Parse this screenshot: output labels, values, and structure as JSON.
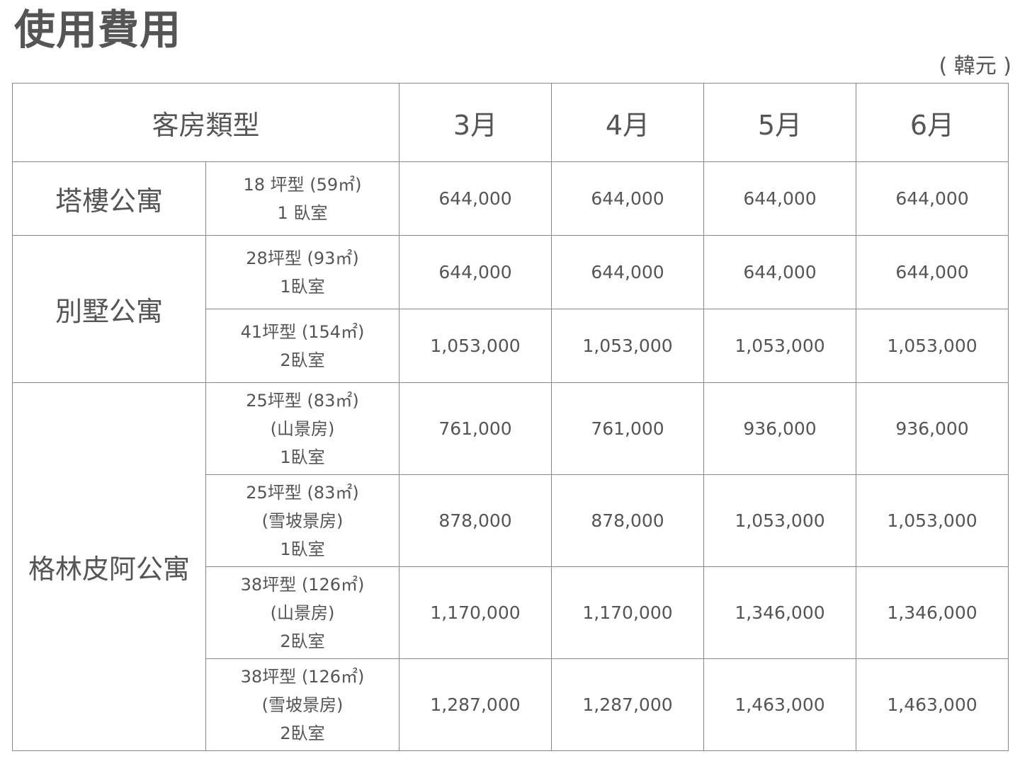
{
  "title": "使用費用",
  "unit_note": "( 韓元 )",
  "table": {
    "header": {
      "room_type": "客房類型",
      "months": [
        "3月",
        "4月",
        "5月",
        "6月"
      ]
    },
    "groups": [
      {
        "category": "塔樓公寓",
        "rows": [
          {
            "lines": [
              "18 坪型 (59㎡)",
              "1 臥室"
            ],
            "prices": [
              "644,000",
              "644,000",
              "644,000",
              "644,000"
            ]
          }
        ]
      },
      {
        "category": "別墅公寓",
        "rows": [
          {
            "lines": [
              "28坪型 (93㎡)",
              "1臥室"
            ],
            "prices": [
              "644,000",
              "644,000",
              "644,000",
              "644,000"
            ]
          },
          {
            "lines": [
              "41坪型 (154㎡)",
              "2臥室"
            ],
            "prices": [
              "1,053,000",
              "1,053,000",
              "1,053,000",
              "1,053,000"
            ]
          }
        ]
      },
      {
        "category": "格林皮阿公寓",
        "rows": [
          {
            "lines": [
              "25坪型 (83㎡)",
              "(山景房)",
              "1臥室"
            ],
            "prices": [
              "761,000",
              "761,000",
              "936,000",
              "936,000"
            ]
          },
          {
            "lines": [
              "25坪型 (83㎡)",
              "(雪坡景房)",
              "1臥室"
            ],
            "prices": [
              "878,000",
              "878,000",
              "1,053,000",
              "1,053,000"
            ]
          },
          {
            "lines": [
              "38坪型 (126㎡)",
              "(山景房)",
              "2臥室"
            ],
            "prices": [
              "1,170,000",
              "1,170,000",
              "1,346,000",
              "1,346,000"
            ]
          },
          {
            "lines": [
              "38坪型 (126㎡)",
              "(雪坡景房)",
              "2臥室"
            ],
            "prices": [
              "1,287,000",
              "1,287,000",
              "1,463,000",
              "1,463,000"
            ]
          }
        ]
      }
    ]
  }
}
